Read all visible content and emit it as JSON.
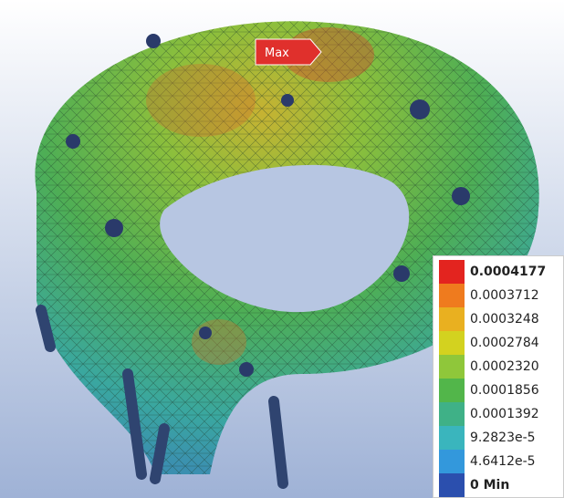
{
  "probe": {
    "label": "Max"
  },
  "legend": {
    "items": [
      {
        "label": "0.0004177",
        "color": "#e3241f"
      },
      {
        "label": "0.0003712",
        "color": "#ef7b1e"
      },
      {
        "label": "0.0003248",
        "color": "#e9b020"
      },
      {
        "label": "0.0002784",
        "color": "#d3d21f"
      },
      {
        "label": "0.0002320",
        "color": "#8fc73a"
      },
      {
        "label": "0.0001856",
        "color": "#52b64a"
      },
      {
        "label": "0.0001392",
        "color": "#3fb187"
      },
      {
        "label": "9.2823e-5",
        "color": "#3ab5bd"
      },
      {
        "label": "4.6412e-5",
        "color": "#3398dc"
      },
      {
        "label": "0 Min",
        "color": "#2b4fae"
      }
    ]
  }
}
